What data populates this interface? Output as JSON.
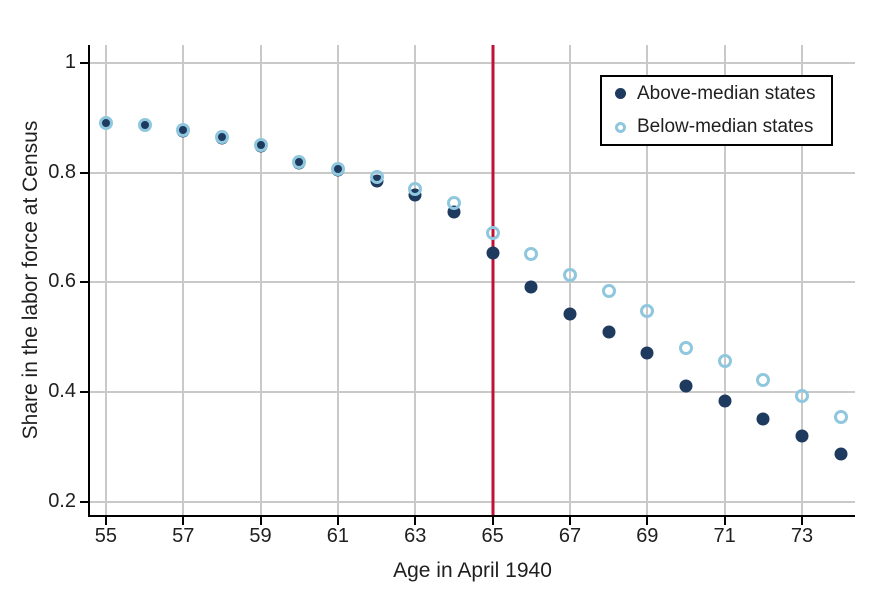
{
  "figure": {
    "background": "#ffffff",
    "text_color": "#1f1f1f"
  },
  "chart_data": {
    "type": "scatter",
    "title": "",
    "xlabel": "Age in April 1940",
    "ylabel": "Share in the labor force at Census",
    "x": [
      55,
      56,
      57,
      58,
      59,
      60,
      61,
      62,
      63,
      64,
      65,
      66,
      67,
      68,
      69,
      70,
      71,
      72,
      73,
      74
    ],
    "series": [
      {
        "name": "Above-median states",
        "marker": "filled-circle",
        "color": "#1e3a5f",
        "values": [
          0.89,
          0.888,
          0.877,
          0.864,
          0.849,
          0.818,
          0.805,
          0.785,
          0.759,
          0.728,
          0.654,
          0.592,
          0.543,
          0.51,
          0.472,
          0.412,
          0.384,
          0.351,
          0.32,
          0.287
        ]
      },
      {
        "name": "Below-median states",
        "marker": "open-circle",
        "color": "#8fc7de",
        "values": [
          0.89,
          0.888,
          0.878,
          0.865,
          0.85,
          0.82,
          0.807,
          0.793,
          0.771,
          0.744,
          0.691,
          0.651,
          0.613,
          0.585,
          0.548,
          0.481,
          0.456,
          0.422,
          0.393,
          0.355
        ]
      }
    ],
    "reference_line": {
      "axis": "x",
      "value": 65,
      "color": "#bf1335"
    },
    "xticks": {
      "values": [
        55,
        57,
        59,
        61,
        63,
        65,
        67,
        69,
        71,
        73
      ],
      "labels": [
        "55",
        "57",
        "59",
        "61",
        "63",
        "65",
        "67",
        "69",
        "71",
        "73"
      ]
    },
    "yticks": {
      "values": [
        1,
        0.8,
        0.6,
        0.4,
        0.2
      ],
      "labels": [
        "1",
        "0.8",
        "0.6",
        "0.4",
        "0.2"
      ]
    },
    "xlim": [
      54.59,
      74.37
    ],
    "ylim": [
      0.176,
      1.033
    ],
    "grid": true,
    "grid_color": "#c9c9c9",
    "axis_color": "#000000",
    "legend": {
      "position": "top-right"
    }
  }
}
